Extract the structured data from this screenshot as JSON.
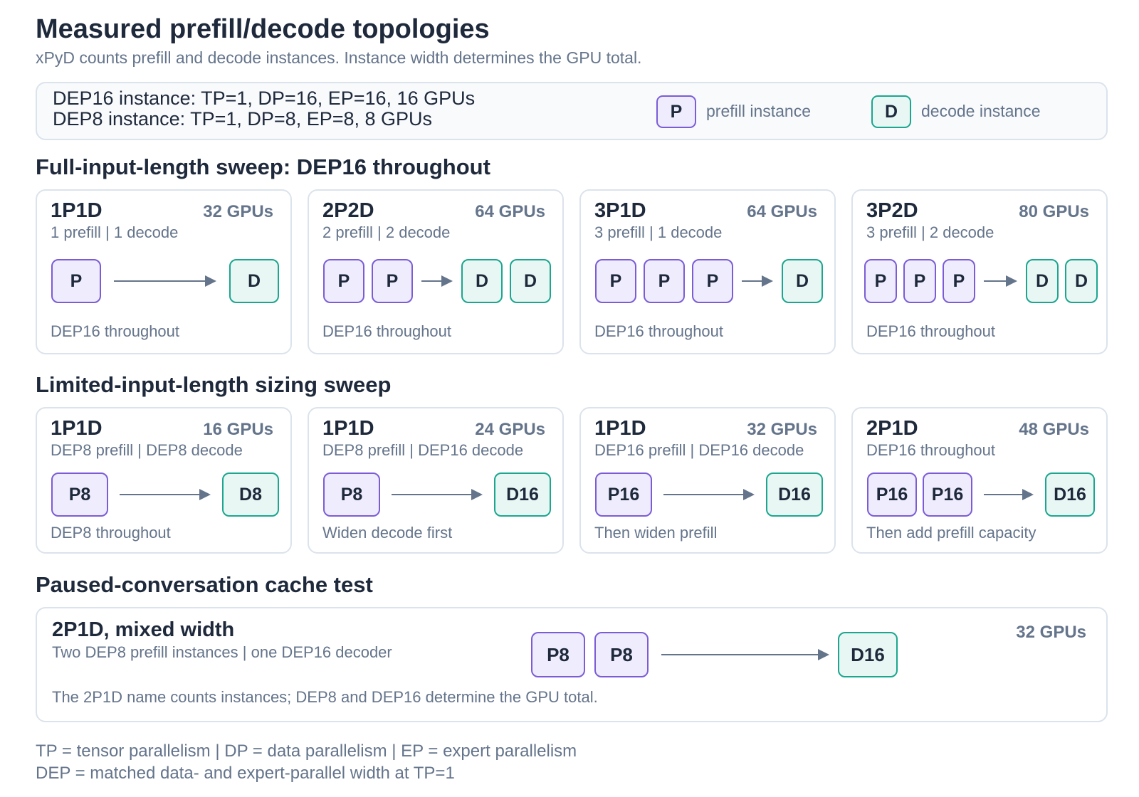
{
  "title": "Measured prefill/decode topologies",
  "subtitle": "xPyD counts prefill and decode instances. Instance width determines the GPU total.",
  "legend": {
    "line1": "DEP16 instance: TP=1, DP=16, EP=16, 16 GPUs",
    "line2": "DEP8 instance: TP=1, DP=8, EP=8, 8 GPUs",
    "prefill_chip": "P",
    "prefill_label": "prefill instance",
    "decode_chip": "D",
    "decode_label": "decode instance",
    "colors": {
      "prefill_border": "#7c5cd6",
      "prefill_fill": "#efedfd",
      "decode_border": "#1ba68f",
      "decode_fill": "#e8f7f4"
    }
  },
  "sections": {
    "full": "Full-input-length sweep: DEP16 throughout",
    "limited": "Limited-input-length sizing sweep",
    "paused": "Paused-conversation cache test"
  },
  "full_cards": [
    {
      "name": "1P1D",
      "gpus": "32 GPUs",
      "sub": "1 prefill | 1 decode",
      "prefill": [
        "P"
      ],
      "decode": [
        "D"
      ],
      "note": "DEP16 throughout"
    },
    {
      "name": "2P2D",
      "gpus": "64 GPUs",
      "sub": "2 prefill | 2 decode",
      "prefill": [
        "P",
        "P"
      ],
      "decode": [
        "D",
        "D"
      ],
      "note": "DEP16 throughout"
    },
    {
      "name": "3P1D",
      "gpus": "64 GPUs",
      "sub": "3 prefill | 1 decode",
      "prefill": [
        "P",
        "P",
        "P"
      ],
      "decode": [
        "D"
      ],
      "note": "DEP16 throughout"
    },
    {
      "name": "3P2D",
      "gpus": "80 GPUs",
      "sub": "3 prefill | 2 decode",
      "prefill": [
        "P",
        "P",
        "P"
      ],
      "decode": [
        "D",
        "D"
      ],
      "note": "DEP16 throughout"
    }
  ],
  "limited_cards": [
    {
      "name": "1P1D",
      "gpus": "16 GPUs",
      "sub": "DEP8 prefill | DEP8 decode",
      "prefill": [
        "P8"
      ],
      "decode": [
        "D8"
      ],
      "note": "DEP8 throughout"
    },
    {
      "name": "1P1D",
      "gpus": "24 GPUs",
      "sub": "DEP8 prefill | DEP16 decode",
      "prefill": [
        "P8"
      ],
      "decode": [
        "D16"
      ],
      "note": "Widen decode first"
    },
    {
      "name": "1P1D",
      "gpus": "32 GPUs",
      "sub": "DEP16 prefill | DEP16 decode",
      "prefill": [
        "P16"
      ],
      "decode": [
        "D16"
      ],
      "note": "Then widen prefill"
    },
    {
      "name": "2P1D",
      "gpus": "48 GPUs",
      "sub": "DEP16 throughout",
      "prefill": [
        "P16",
        "P16"
      ],
      "decode": [
        "D16"
      ],
      "note": "Then add prefill capacity"
    }
  ],
  "paused_card": {
    "name": "2P1D, mixed width",
    "gpus": "32 GPUs",
    "sub": "Two DEP8 prefill instances | one DEP16 decoder",
    "prefill": [
      "P8",
      "P8"
    ],
    "decode": [
      "D16"
    ],
    "note": "The 2P1D name counts instances; DEP8 and DEP16 determine the GPU total."
  },
  "footer": {
    "line1": "TP = tensor parallelism | DP = data parallelism | EP = expert parallelism",
    "line2": "DEP = matched data- and expert-parallel width at TP=1"
  }
}
